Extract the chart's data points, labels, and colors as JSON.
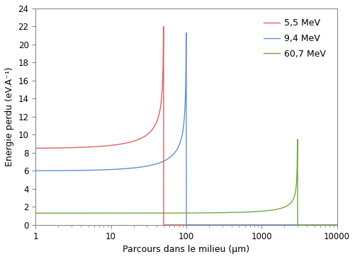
{
  "title": "",
  "xlabel": "Parcours dans le milieu (μm)",
  "ylabel": "Energie perdu (eV.A⁻¹)",
  "xlim": [
    1,
    10000
  ],
  "ylim": [
    0,
    24
  ],
  "yticks": [
    0,
    2,
    4,
    6,
    8,
    10,
    12,
    14,
    16,
    18,
    20,
    22,
    24
  ],
  "legend_labels": [
    "5,5 MeV",
    "9,4 MeV",
    "60,7 MeV"
  ],
  "colors": [
    "#e06060",
    "#6090d0",
    "#70a840"
  ],
  "curve1": {
    "range_um": 50.0,
    "initial_value": 8.5,
    "peak_value": 22.0
  },
  "curve2": {
    "range_um": 100.0,
    "initial_value": 6.0,
    "peak_value": 21.3
  },
  "curve3": {
    "range_um": 3000.0,
    "initial_value": 1.3,
    "peak_value": 9.5
  },
  "background_color": "#ffffff"
}
